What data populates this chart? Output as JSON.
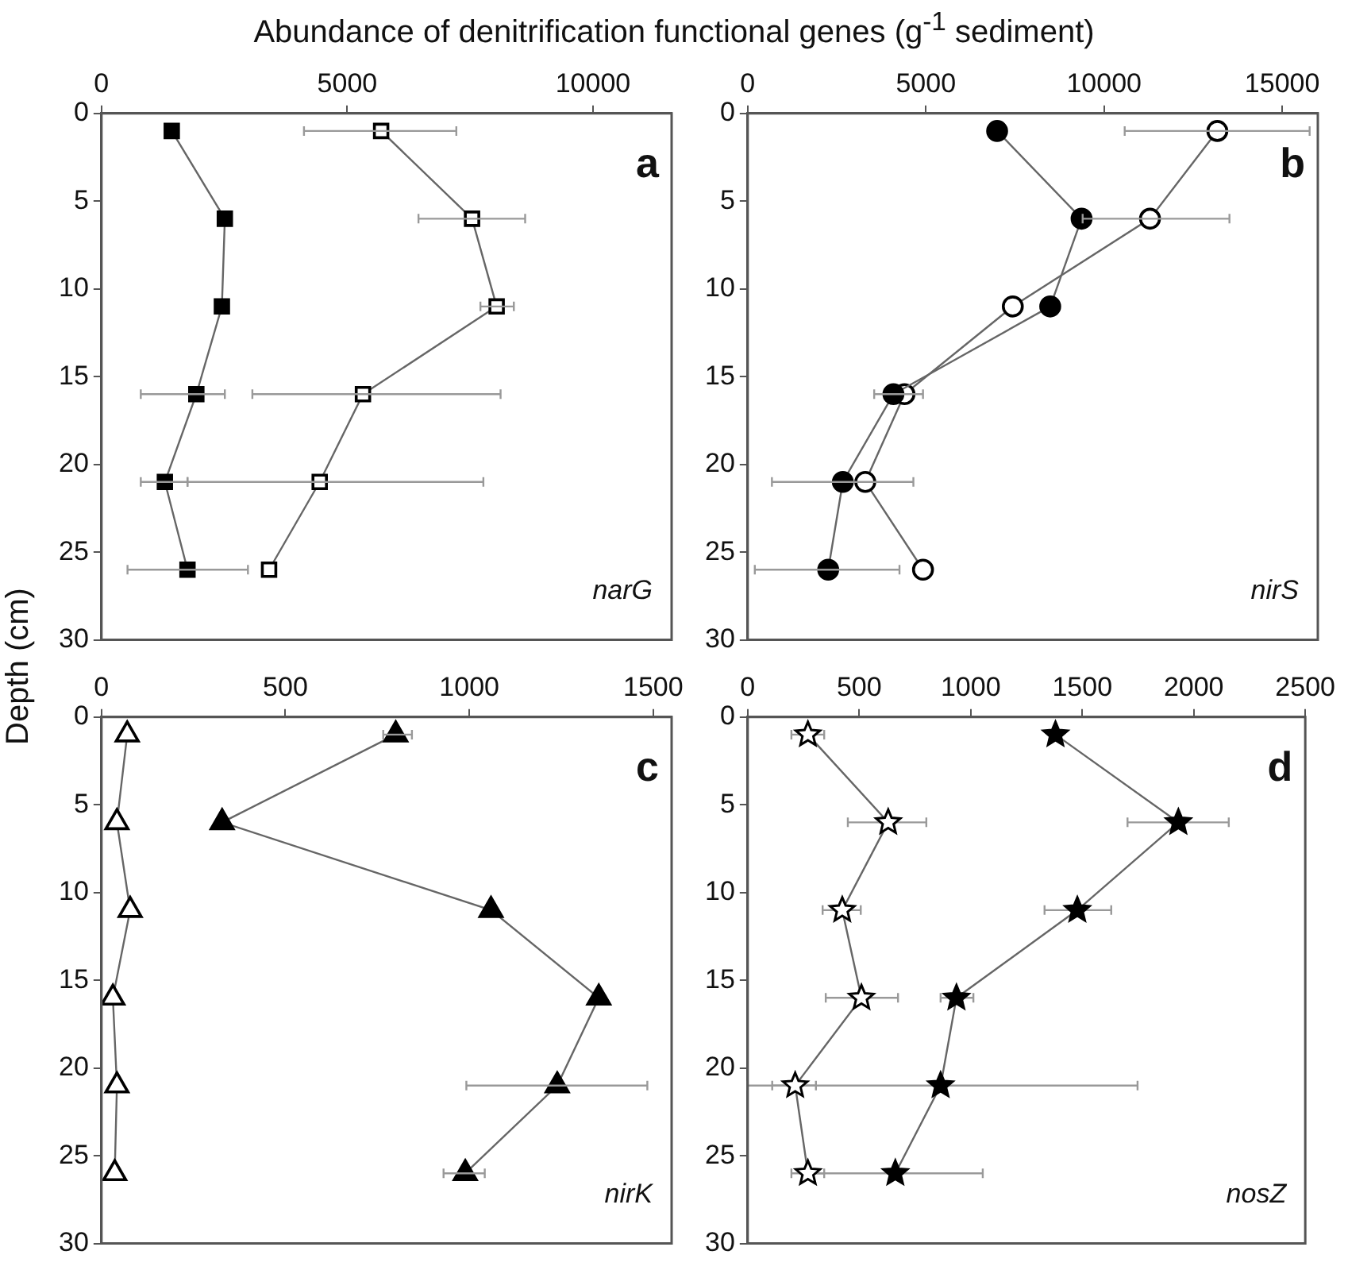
{
  "chart_data": [
    {
      "type": "line",
      "title": "Abundance of denitrification functional genes (g$^{-1}$ sediment)",
      "ylabel": "Depth (cm)",
      "marker": "square",
      "xlim": [
        0,
        11600
      ],
      "xticks": [
        0,
        5000,
        10000
      ],
      "ylim": [
        30,
        0
      ],
      "yticks": [
        0,
        5,
        10,
        15,
        20,
        25,
        30
      ],
      "annotations": [
        "a",
        "narG"
      ],
      "series": [
        {
          "color": "#000000",
          "x": [
            1430,
            2510,
            2450,
            1930,
            1290,
            1750
          ],
          "values": [
            1,
            6,
            11,
            16,
            21,
            26
          ],
          "xerrors": [
            null,
            null,
            null,
            [
              800,
              2510
            ],
            [
              800,
              1750
            ],
            [
              530,
              2980
            ]
          ]
        },
        {
          "color": "#ffffff",
          "x": [
            5690,
            7540,
            8040,
            5320,
            4440,
            3410
          ],
          "values": [
            1,
            6,
            11,
            16,
            21,
            26
          ],
          "xerrors": [
            [
              4120,
              7220
            ],
            [
              6450,
              8620
            ],
            [
              7710,
              8390
            ],
            [
              3070,
              8120
            ],
            [
              1750,
              7770
            ],
            null
          ]
        }
      ]
    },
    {
      "type": "line",
      "marker": "circle",
      "xlim": [
        0,
        16000
      ],
      "xticks": [
        0,
        5000,
        10000,
        15000
      ],
      "ylim": [
        30,
        0
      ],
      "yticks": [
        0,
        5,
        10,
        15,
        20,
        25,
        30
      ],
      "annotations": [
        "b",
        "nirS"
      ],
      "series": [
        {
          "color": "#000000",
          "x": [
            7000,
            9370,
            8490,
            4090,
            2670,
            2260
          ],
          "values": [
            1,
            6,
            11,
            16,
            21,
            26
          ],
          "xerrors": [
            null,
            null,
            null,
            [
              3550,
              4920
            ],
            [
              680,
              4650
            ],
            [
              200,
              4260
            ]
          ]
        },
        {
          "color": "#ffffff",
          "x": [
            13180,
            11290,
            7440,
            4400,
            3300,
            4920
          ],
          "values": [
            1,
            6,
            11,
            16,
            21,
            26
          ],
          "xerrors": [
            [
              10580,
              15770
            ],
            [
              9400,
              13520
            ],
            null,
            null,
            null,
            null
          ]
        }
      ]
    },
    {
      "type": "line",
      "marker": "triangle",
      "xlim": [
        0,
        1550
      ],
      "xticks": [
        0,
        500,
        1000,
        1500
      ],
      "ylim": [
        30,
        0
      ],
      "yticks": [
        0,
        5,
        10,
        15,
        20,
        25,
        30
      ],
      "annotations": [
        "c",
        "nirK"
      ],
      "series": [
        {
          "color": "#000000",
          "x": [
            800,
            328,
            1059,
            1352,
            1239,
            989
          ],
          "values": [
            1,
            6,
            11,
            16,
            21,
            26
          ],
          "xerrors": [
            [
              766,
              844
            ],
            null,
            null,
            null,
            [
              992,
              1484
            ],
            [
              930,
              1042
            ]
          ]
        },
        {
          "color": "#ffffff",
          "x": [
            70,
            42,
            78,
            31,
            42,
            36
          ],
          "values": [
            1,
            6,
            11,
            16,
            21,
            26
          ]
        }
      ]
    },
    {
      "type": "line",
      "marker": "star",
      "xlim": [
        0,
        2500
      ],
      "xticks": [
        0,
        500,
        1000,
        1500,
        2000,
        2500
      ],
      "ylim": [
        30,
        0
      ],
      "yticks": [
        0,
        5,
        10,
        15,
        20,
        25,
        30
      ],
      "annotations": [
        "d",
        "nosZ"
      ],
      "series": [
        {
          "color": "#000000",
          "x": [
            1380,
            1931,
            1478,
            936,
            865,
            662
          ],
          "values": [
            1,
            6,
            11,
            16,
            21,
            26
          ],
          "xerrors": [
            null,
            [
              1703,
              2157
            ],
            [
              1331,
              1630
            ],
            [
              865,
              1012
            ],
            [
              0,
              1748
            ],
            [
              270,
              1054
            ]
          ]
        },
        {
          "color": "#ffffff",
          "x": [
            270,
            630,
            424,
            510,
            213,
            270
          ],
          "values": [
            1,
            6,
            11,
            16,
            21,
            26
          ],
          "xerrors": [
            [
              196,
              343
            ],
            [
              449,
              801
            ],
            [
              336,
              507
            ],
            [
              350,
              674
            ],
            [
              110,
              306
            ],
            [
              196,
              343
            ]
          ]
        }
      ]
    }
  ]
}
